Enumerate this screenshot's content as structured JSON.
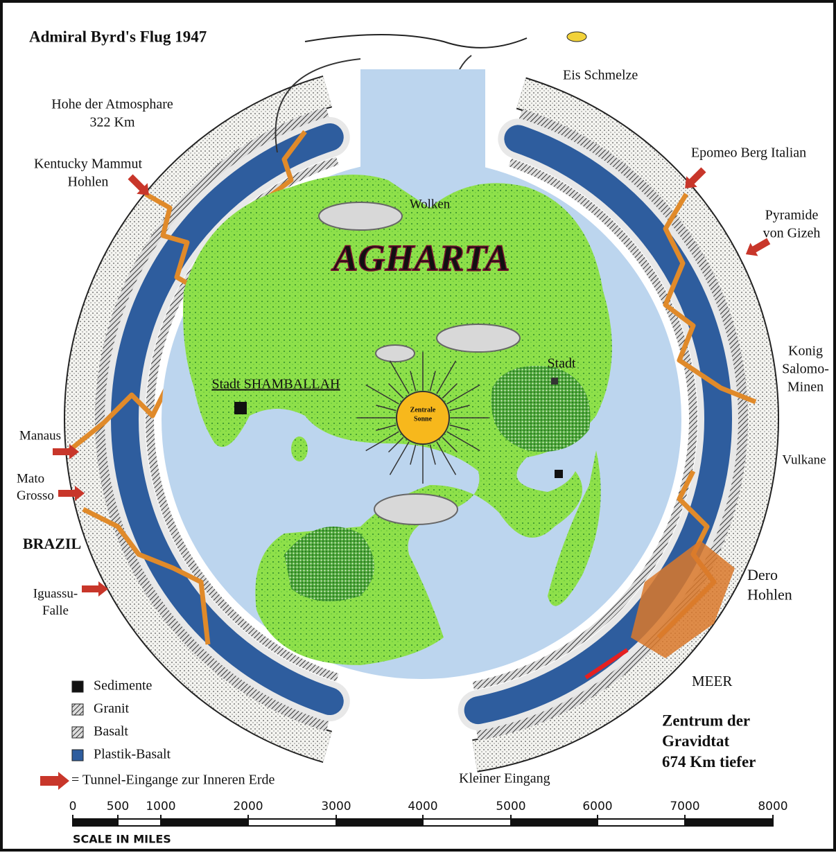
{
  "title": "Admiral Byrd's Flug 1947",
  "map_title": "AGHARTA",
  "labels": [
    {
      "lines": [
        "Eis Schmelze"
      ]
    },
    {
      "lines": [
        "Hohe der Atmosphare",
        "322 Km"
      ]
    },
    {
      "lines": [
        "Kentucky Mammut",
        "Hohlen"
      ]
    },
    {
      "lines": [
        "Epomeo Berg Italian"
      ]
    },
    {
      "lines": [
        "Pyramide",
        "von Gizeh"
      ]
    },
    {
      "lines": [
        "Wolken"
      ]
    },
    {
      "lines": [
        "Stadt SHAMBALLAH"
      ]
    },
    {
      "lines": [
        "Stadt"
      ]
    },
    {
      "lines": [
        "Zentrale",
        "Sonne"
      ]
    },
    {
      "lines": [
        "Konig",
        "Salomo-",
        "Minen"
      ]
    },
    {
      "lines": [
        "Manaus"
      ]
    },
    {
      "lines": [
        "Mato",
        "Grosso"
      ]
    },
    {
      "lines": [
        "BRAZIL"
      ]
    },
    {
      "lines": [
        "Vulkane"
      ]
    },
    {
      "lines": [
        "Iguassu-",
        "Falle"
      ]
    },
    {
      "lines": [
        "Dero",
        "Hohlen"
      ]
    },
    {
      "lines": [
        "MEER"
      ]
    },
    {
      "lines": [
        "Zentrum der",
        "Gravidtat",
        "674 Km tiefer"
      ]
    },
    {
      "lines": [
        "Kleiner Eingang"
      ]
    }
  ],
  "legend": {
    "items": [
      "Sedimente",
      "Granit",
      "Basalt",
      "Plastik-Basalt"
    ],
    "arrow_note": "= Tunnel-Eingange zur Inneren Erde"
  },
  "scale": {
    "ticks": [
      "0",
      "500",
      "1000",
      "2000",
      "3000",
      "4000",
      "5000",
      "6000",
      "7000",
      "8000"
    ],
    "caption": "SCALE IN MILES"
  }
}
